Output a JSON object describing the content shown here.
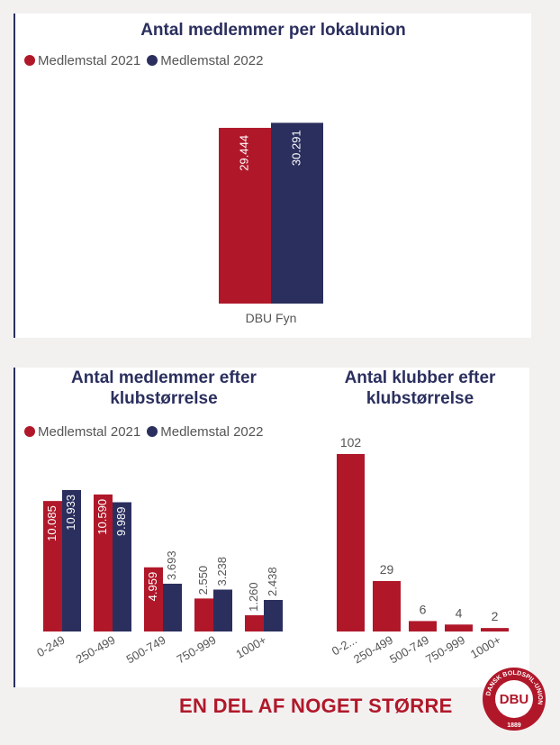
{
  "colors": {
    "series2021": "#b0182a",
    "series2022": "#2b2f5e",
    "label_gray": "#555555"
  },
  "legend": {
    "s2021": "Medlemstal 2021",
    "s2022": "Medlemstal 2022"
  },
  "footer": {
    "tagline": "EN DEL AF NOGET STØRRE"
  },
  "logo": {
    "center_text": "DBU",
    "ring_text": "DANSK BOLDSPIL-UNION",
    "year": "1889"
  },
  "chart_data": [
    {
      "type": "bar",
      "title": "Antal medlemmer per lokalunion",
      "categories": [
        "DBU Fyn"
      ],
      "series": [
        {
          "name": "Medlemstal 2021",
          "values": [
            29444
          ],
          "labels": [
            "29.444"
          ]
        },
        {
          "name": "Medlemstal 2022",
          "values": [
            30291
          ],
          "labels": [
            "30.291"
          ]
        }
      ],
      "ylim": [
        0,
        32000
      ]
    },
    {
      "type": "bar",
      "title_lines": [
        "Antal medlemmer efter",
        "klubstørrelse"
      ],
      "categories": [
        "0-249",
        "250-499",
        "500-749",
        "750-999",
        "1000+"
      ],
      "series": [
        {
          "name": "Medlemstal 2021",
          "values": [
            10085,
            10590,
            4959,
            2550,
            1260
          ],
          "labels": [
            "10.085",
            "10.590",
            "4.959",
            "2.550",
            "1.260"
          ]
        },
        {
          "name": "Medlemstal 2022",
          "values": [
            10933,
            9989,
            3693,
            3238,
            2438
          ],
          "labels": [
            "10.933",
            "9.989",
            "3.693",
            "3.238",
            "2.438"
          ]
        }
      ],
      "ylim": [
        0,
        11000
      ]
    },
    {
      "type": "bar",
      "title_lines": [
        "Antal klubber efter",
        "klubstørrelse"
      ],
      "categories": [
        "0-2...",
        "250-499",
        "500-749",
        "750-999",
        "1000+"
      ],
      "values": [
        102,
        29,
        6,
        4,
        2
      ],
      "labels": [
        "102",
        "29",
        "6",
        "4",
        "2"
      ],
      "ylim": [
        0,
        102
      ]
    }
  ]
}
